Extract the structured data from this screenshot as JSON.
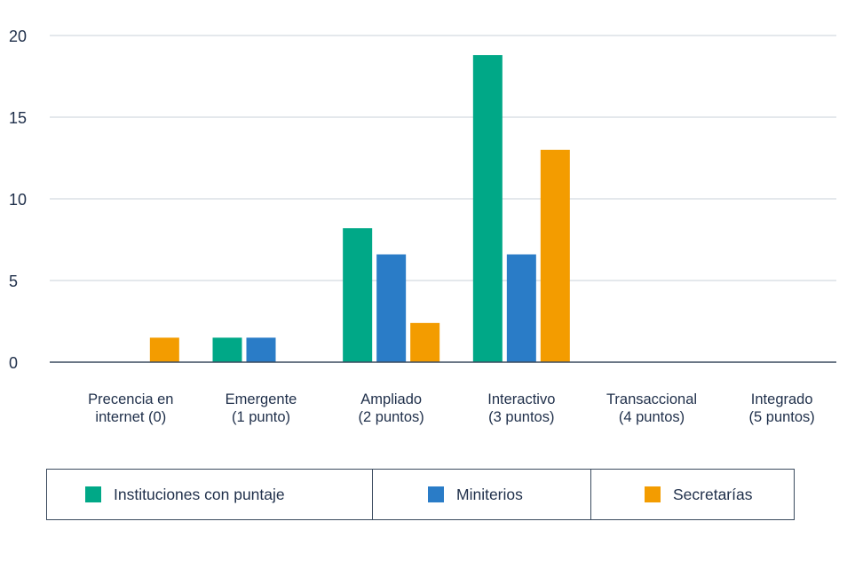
{
  "chart_data": {
    "type": "bar",
    "categories": [
      [
        "Precencia en",
        "internet (0)"
      ],
      [
        "Emergente",
        "(1 punto)"
      ],
      [
        "Ampliado",
        "(2 puntos)"
      ],
      [
        "Interactivo",
        "(3 puntos)"
      ],
      [
        "Transaccional",
        "(4 puntos)"
      ],
      [
        "Integrado",
        "(5 puntos)"
      ]
    ],
    "series": [
      {
        "name": "Instituciones con puntaje",
        "color": "#00a887",
        "values": [
          0,
          1.5,
          8.2,
          18.8,
          0,
          0
        ]
      },
      {
        "name": "Miniterios",
        "color": "#2a7cc7",
        "values": [
          0,
          1.5,
          6.6,
          6.6,
          0,
          0
        ]
      },
      {
        "name": "Secretarías",
        "color": "#f39c00",
        "values": [
          1.5,
          0,
          2.4,
          13.0,
          0,
          0
        ]
      }
    ],
    "ylim": [
      0,
      20
    ],
    "yticks": [
      "0",
      "5",
      "10",
      "15",
      "20"
    ],
    "grid": true,
    "legend_position": "bottom"
  }
}
